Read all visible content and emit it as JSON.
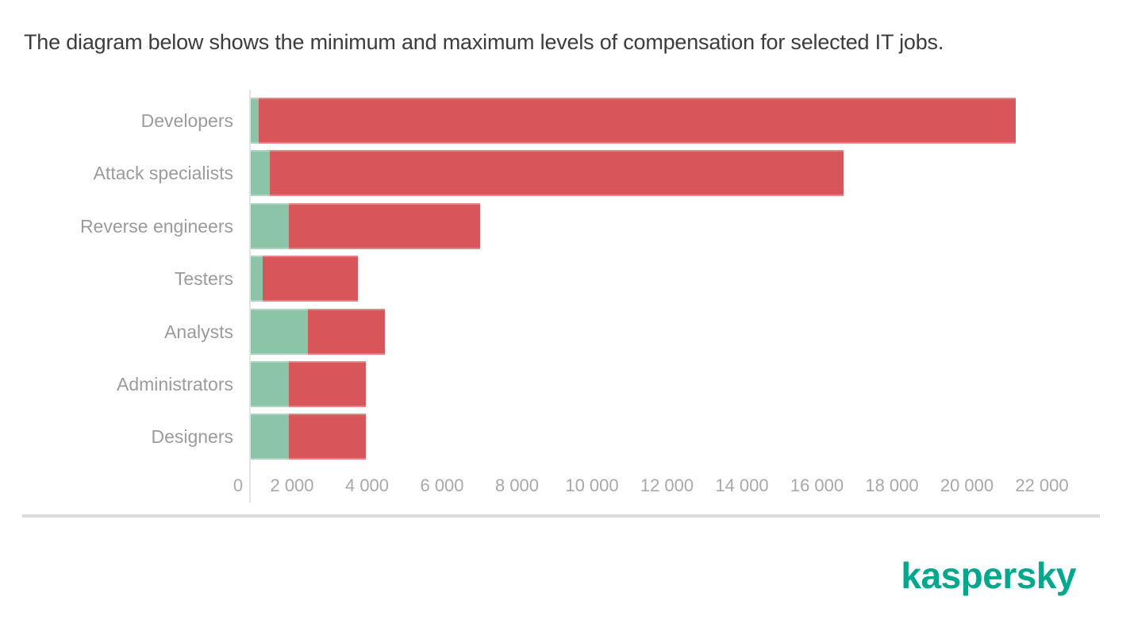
{
  "title": "The diagram below shows the minimum and maximum levels of compensation for selected IT jobs.",
  "chart_data": {
    "type": "bar",
    "orientation": "horizontal",
    "title": "The diagram below shows the minimum and maximum levels of compensation for selected IT jobs.",
    "categories": [
      "Developers",
      "Attack specialists",
      "Reverse engineers",
      "Testers",
      "Analysts",
      "Administrators",
      "Designers"
    ],
    "series": [
      {
        "name": "Minimum compensation",
        "color": "#8CC4A8",
        "values": [
          200,
          500,
          1000,
          300,
          1500,
          1000,
          1000
        ]
      },
      {
        "name": "Maximum compensation",
        "color": "#D8555A",
        "values": [
          20000,
          15500,
          6000,
          2800,
          3500,
          3000,
          3000
        ]
      }
    ],
    "stacked": true,
    "xlim": [
      0,
      22000
    ],
    "x_tick_values": [
      0,
      2000,
      4000,
      6000,
      8000,
      10000,
      12000,
      14000,
      16000,
      18000,
      20000,
      22000
    ],
    "x_tick_labels": [
      "0",
      "2 000",
      "4 000",
      "6 000",
      "8 000",
      "10 000",
      "12 000",
      "14 000",
      "16 000",
      "18 000",
      "20 000",
      "22 000"
    ],
    "grid": false,
    "legend": "none"
  },
  "footer": {
    "logo_text": "kaspersky"
  },
  "colors": {
    "min_bar": "#8CC4A8",
    "max_bar": "#D8555A",
    "title_text": "#3C3C3C",
    "category_label": "#9B9B9B",
    "axis_label": "#A8A8A8",
    "axis_line": "#E3E3E3",
    "separator": "#DADADA",
    "logo": "#00A88E"
  }
}
